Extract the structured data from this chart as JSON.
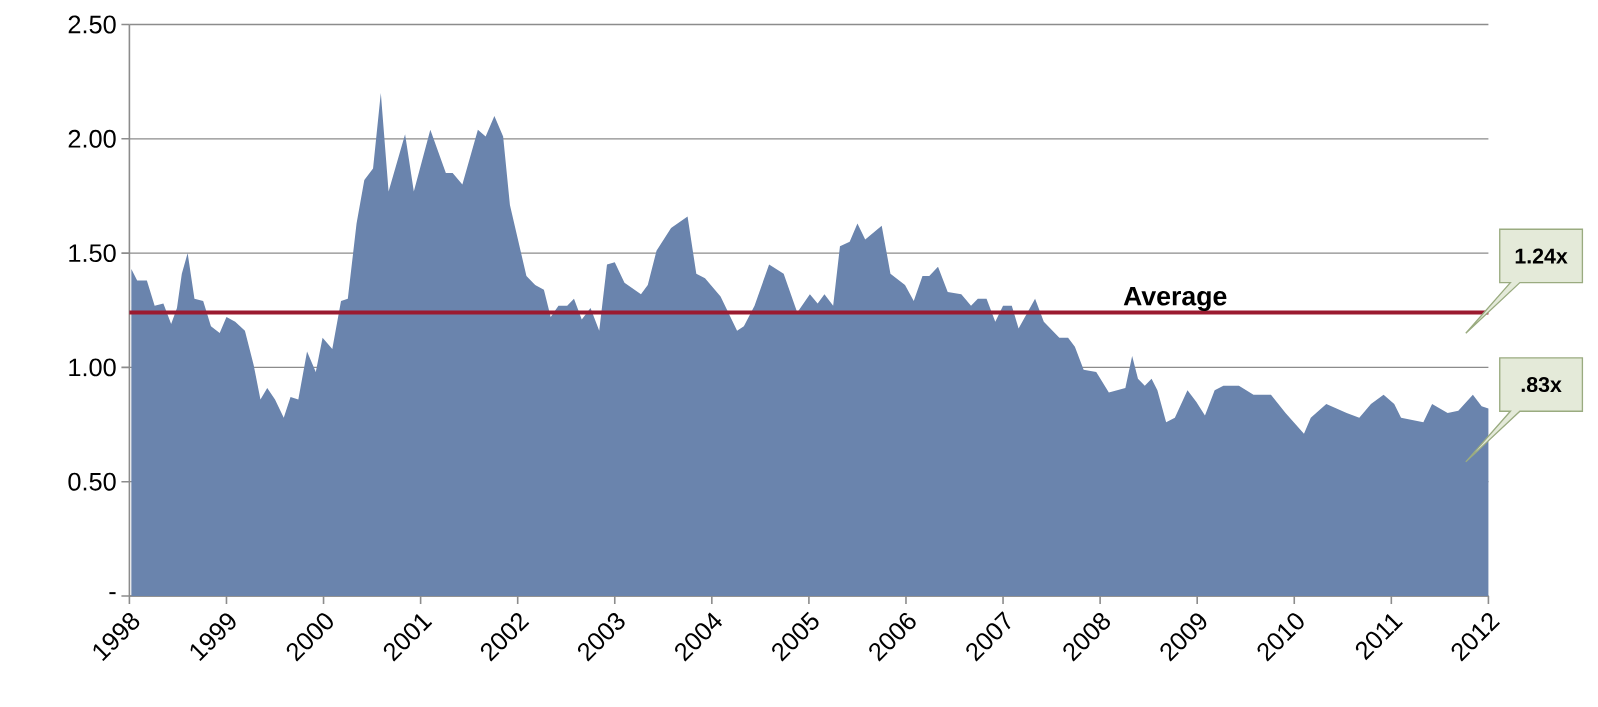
{
  "chart_data": {
    "type": "area",
    "x": [
      1998.02,
      1998.08,
      1998.18,
      1998.26,
      1998.35,
      1998.43,
      1998.49,
      1998.54,
      1998.6,
      1998.67,
      1998.76,
      1998.84,
      1998.93,
      1999.0,
      1999.09,
      1999.19,
      1999.28,
      1999.35,
      1999.42,
      1999.5,
      1999.59,
      1999.66,
      1999.74,
      1999.83,
      1999.92,
      1999.99,
      2000.09,
      2000.18,
      2000.25,
      2000.34,
      2000.42,
      2000.51,
      2000.59,
      2000.67,
      2000.84,
      2000.93,
      2001.1,
      2001.26,
      2001.33,
      2001.43,
      2001.59,
      2001.67,
      2001.76,
      2001.85,
      2001.92,
      2002.09,
      2002.18,
      2002.27,
      2002.34,
      2002.42,
      2002.51,
      2002.58,
      2002.66,
      2002.75,
      2002.84,
      2002.92,
      2003.0,
      2003.1,
      2003.27,
      2003.34,
      2003.43,
      2003.58,
      2003.75,
      2003.84,
      2003.93,
      2004.09,
      2004.26,
      2004.33,
      2004.44,
      2004.59,
      2004.74,
      2004.88,
      2005.01,
      2005.09,
      2005.16,
      2005.25,
      2005.32,
      2005.42,
      2005.5,
      2005.58,
      2005.75,
      2005.84,
      2005.99,
      2006.08,
      2006.17,
      2006.24,
      2006.33,
      2006.43,
      2006.57,
      2006.67,
      2006.74,
      2006.83,
      2006.92,
      2007.0,
      2007.09,
      2007.16,
      2007.33,
      2007.42,
      2007.58,
      2007.67,
      2007.74,
      2007.83,
      2007.96,
      2008.09,
      2008.26,
      2008.33,
      2008.39,
      2008.46,
      2008.53,
      2008.59,
      2008.68,
      2008.77,
      2008.9,
      2008.99,
      2009.08,
      2009.18,
      2009.27,
      2009.43,
      2009.58,
      2009.76,
      2009.91,
      2010.1,
      2010.17,
      2010.33,
      2010.54,
      2010.67,
      2010.79,
      2010.92,
      2011.03,
      2011.1,
      2011.33,
      2011.42,
      2011.58,
      2011.69,
      2011.84,
      2011.93,
      2012.0
    ],
    "series": [
      {
        "color": "#6a84ad",
        "values": [
          1.43,
          1.38,
          1.38,
          1.27,
          1.28,
          1.19,
          1.26,
          1.41,
          1.5,
          1.3,
          1.29,
          1.18,
          1.15,
          1.22,
          1.2,
          1.16,
          1.01,
          0.86,
          0.91,
          0.86,
          0.78,
          0.87,
          0.86,
          1.07,
          0.98,
          1.13,
          1.08,
          1.29,
          1.3,
          1.63,
          1.82,
          1.87,
          2.2,
          1.77,
          2.02,
          1.77,
          2.04,
          1.85,
          1.85,
          1.8,
          2.04,
          2.01,
          2.1,
          2.01,
          1.71,
          1.4,
          1.36,
          1.34,
          1.22,
          1.27,
          1.27,
          1.3,
          1.21,
          1.26,
          1.16,
          1.45,
          1.46,
          1.37,
          1.32,
          1.36,
          1.51,
          1.61,
          1.66,
          1.41,
          1.39,
          1.31,
          1.16,
          1.18,
          1.27,
          1.45,
          1.41,
          1.24,
          1.32,
          1.28,
          1.32,
          1.27,
          1.53,
          1.55,
          1.63,
          1.56,
          1.62,
          1.41,
          1.36,
          1.29,
          1.4,
          1.4,
          1.44,
          1.33,
          1.32,
          1.27,
          1.3,
          1.3,
          1.2,
          1.27,
          1.27,
          1.17,
          1.3,
          1.2,
          1.13,
          1.13,
          1.09,
          0.99,
          0.98,
          0.89,
          0.91,
          1.05,
          0.95,
          0.92,
          0.95,
          0.9,
          0.76,
          0.78,
          0.9,
          0.85,
          0.79,
          0.9,
          0.92,
          0.92,
          0.88,
          0.88,
          0.8,
          0.71,
          0.78,
          0.84,
          0.8,
          0.78,
          0.84,
          0.88,
          0.84,
          0.78,
          0.76,
          0.84,
          0.8,
          0.81,
          0.88,
          0.83,
          0.82
        ]
      }
    ],
    "xlim": [
      1998,
      2012
    ],
    "xticks": [
      1998,
      1999,
      2000,
      2001,
      2002,
      2003,
      2004,
      2005,
      2006,
      2007,
      2008,
      2009,
      2010,
      2011,
      2012
    ],
    "ylim": [
      0,
      2.5
    ],
    "yticks": [
      {
        "value": 0,
        "label": "-"
      },
      {
        "value": 0.5,
        "label": "0.50"
      },
      {
        "value": 1,
        "label": "1.00"
      },
      {
        "value": 1.5,
        "label": "1.50"
      },
      {
        "value": 2,
        "label": "2.00"
      },
      {
        "value": 2.5,
        "label": "2.50"
      }
    ],
    "grid": "y",
    "ref_lines": [
      {
        "axis": "y",
        "value": 1.24,
        "label": "Average",
        "color": "#9b1b30",
        "line_style": "solid"
      }
    ],
    "annotations": [
      "1.24x",
      ".83x"
    ]
  }
}
